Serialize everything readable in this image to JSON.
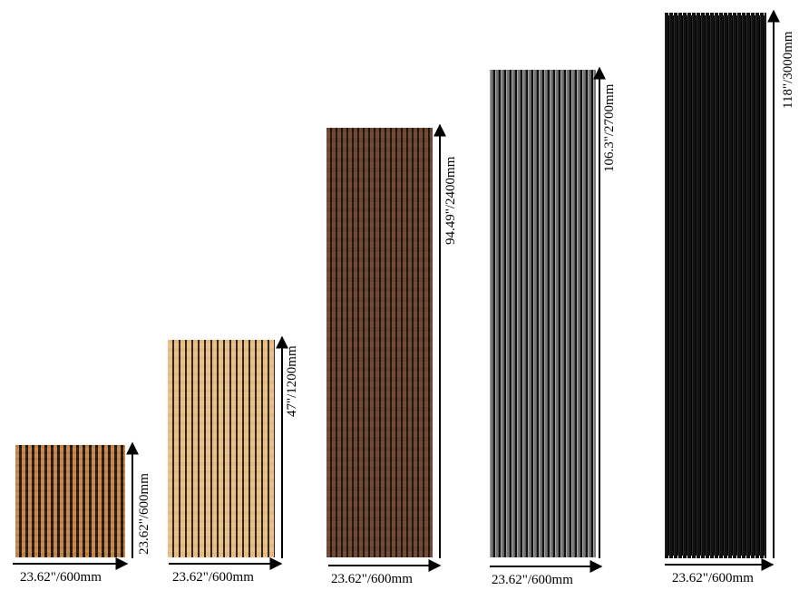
{
  "panels": [
    {
      "width_label": "23.62\"/600mm",
      "height_label": "23.62\"/600mm"
    },
    {
      "width_label": "23.62\"/600mm",
      "height_label": "47\"/1200mm"
    },
    {
      "width_label": "23.62\"/600mm",
      "height_label": "94.49\"/2400mm"
    },
    {
      "width_label": "23.62\"/600mm",
      "height_label": "106.3\"/2700mm"
    },
    {
      "width_label": "23.62\"/600mm",
      "height_label": "118\"/3000mm"
    }
  ]
}
